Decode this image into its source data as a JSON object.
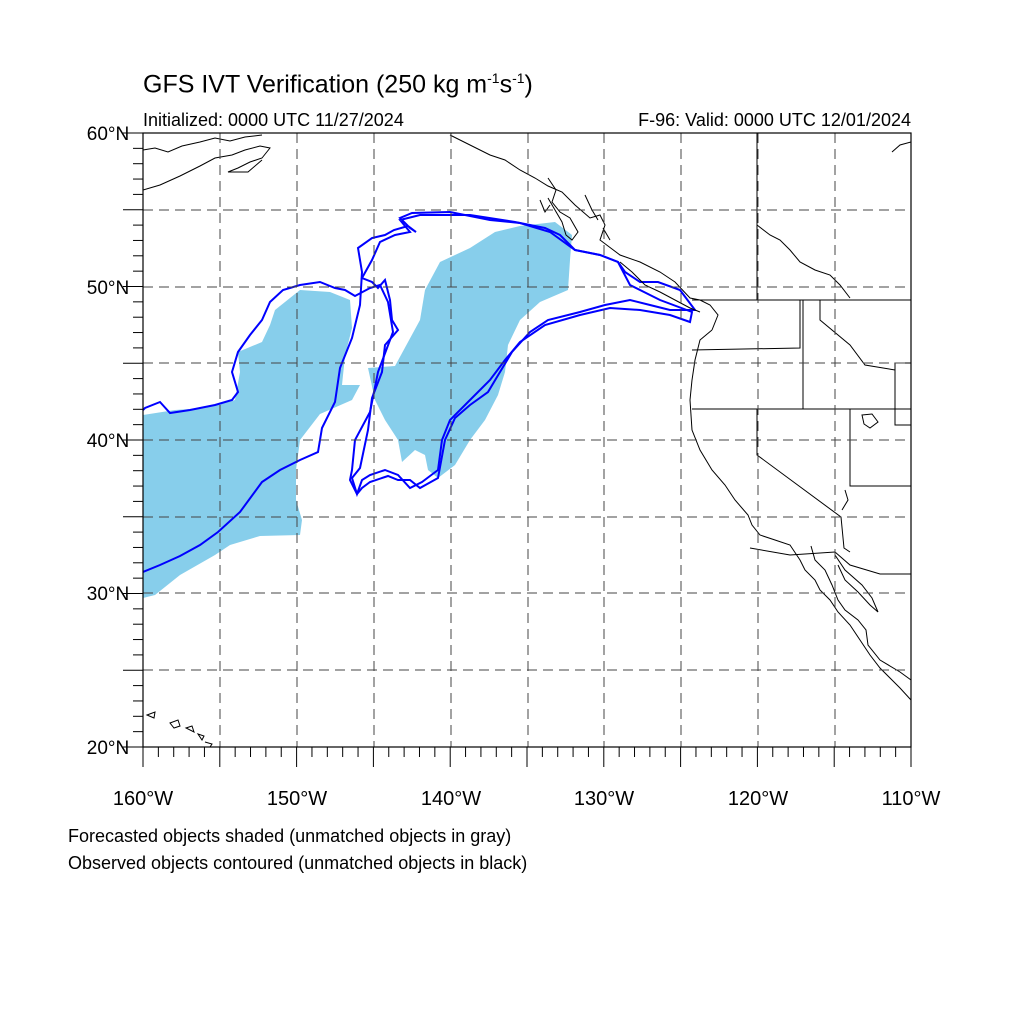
{
  "header": {
    "title_main": "GFS IVT Verification (250 kg m",
    "title_exp1": "-1",
    "title_mid": "s",
    "title_exp2": "-1",
    "title_end": ")",
    "initialized": "Initialized: 0000 UTC 11/27/2024",
    "valid": "F-96: Valid: 0000 UTC 12/01/2024"
  },
  "map": {
    "lon_range": [
      -160,
      -110
    ],
    "lat_range": [
      20,
      60
    ],
    "grid": "dashed, every 5 degrees",
    "lat_labels": [
      {
        "value": 60,
        "text": "60°N"
      },
      {
        "value": 50,
        "text": "50°N"
      },
      {
        "value": 40,
        "text": "40°N"
      },
      {
        "value": 30,
        "text": "30°N"
      },
      {
        "value": 20,
        "text": "20°N"
      }
    ],
    "lon_labels": [
      {
        "value": -160,
        "text": "160°W"
      },
      {
        "value": -150,
        "text": "150°W"
      },
      {
        "value": -140,
        "text": "140°W"
      },
      {
        "value": -130,
        "text": "130°W"
      },
      {
        "value": -120,
        "text": "120°W"
      },
      {
        "value": -110,
        "text": "110°W"
      }
    ],
    "forecast_object_color": "#87ceeb",
    "observed_contour_color": "#0000ff",
    "coastline_color": "#000000"
  },
  "footer": {
    "note1": "Forecasted objects shaded (unmatched objects in gray)",
    "note2": "Observed objects contoured (unmatched objects in black)"
  }
}
